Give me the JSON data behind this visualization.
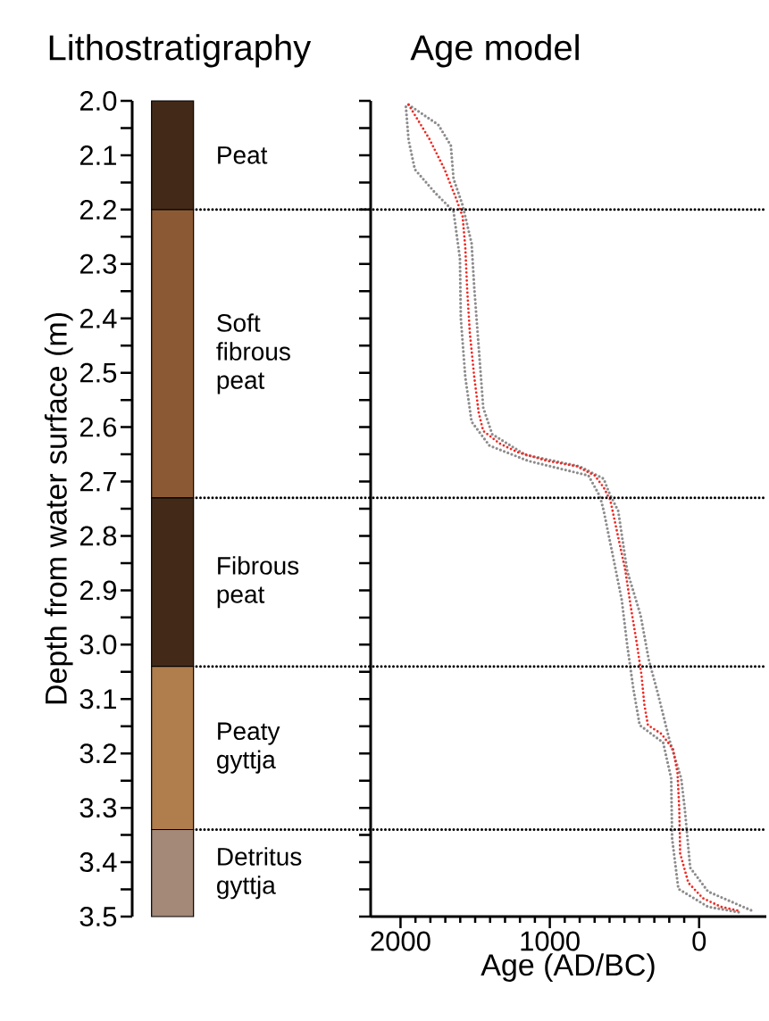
{
  "chart_data": [
    {
      "type": "bar",
      "title": "Lithostratigraphy",
      "ylabel": "Depth from water surface (m)",
      "categories": [
        null
      ],
      "series": [
        {
          "name": "Peat",
          "color": "#432a18",
          "values": [
            0.2
          ],
          "base": [
            2.0
          ]
        },
        {
          "name": "Soft fibrous peat",
          "color": "#8b5a34",
          "values": [
            0.53
          ],
          "base": [
            2.2
          ]
        },
        {
          "name": "Fibrous peat",
          "color": "#432a18",
          "values": [
            0.31
          ],
          "base": [
            2.73
          ]
        },
        {
          "name": "Peaty gyttja",
          "color": "#b07d4c",
          "values": [
            0.3
          ],
          "base": [
            3.04
          ]
        },
        {
          "name": "Detritus gyttja",
          "color": "#a48878",
          "values": [
            0.16
          ],
          "base": [
            3.34
          ]
        }
      ],
      "ylim": [
        3.5,
        2.0
      ],
      "yticks": [
        {
          "value": 2.0,
          "label": "2.0"
        },
        {
          "value": 2.05,
          "label": null
        },
        {
          "value": 2.1,
          "label": "2.1"
        },
        {
          "value": 2.15,
          "label": null
        },
        {
          "value": 2.2,
          "label": "2.2"
        },
        {
          "value": 2.25,
          "label": null
        },
        {
          "value": 2.3,
          "label": "2.3"
        },
        {
          "value": 2.35,
          "label": null
        },
        {
          "value": 2.4,
          "label": "2.4"
        },
        {
          "value": 2.45,
          "label": null
        },
        {
          "value": 2.5,
          "label": "2.5"
        },
        {
          "value": 2.55,
          "label": null
        },
        {
          "value": 2.6,
          "label": "2.6"
        },
        {
          "value": 2.65,
          "label": null
        },
        {
          "value": 2.7,
          "label": "2.7"
        },
        {
          "value": 2.75,
          "label": null
        },
        {
          "value": 2.8,
          "label": "2.8"
        },
        {
          "value": 2.85,
          "label": null
        },
        {
          "value": 2.9,
          "label": "2.9"
        },
        {
          "value": 2.95,
          "label": null
        },
        {
          "value": 3.0,
          "label": "3.0"
        },
        {
          "value": 3.05,
          "label": null
        },
        {
          "value": 3.1,
          "label": "3.1"
        },
        {
          "value": 3.15,
          "label": null
        },
        {
          "value": 3.2,
          "label": "3.2"
        },
        {
          "value": 3.25,
          "label": null
        },
        {
          "value": 3.3,
          "label": "3.3"
        },
        {
          "value": 3.35,
          "label": null
        },
        {
          "value": 3.4,
          "label": "3.4"
        },
        {
          "value": 3.45,
          "label": null
        },
        {
          "value": 3.5,
          "label": "3.5"
        }
      ],
      "tick_labels": "y"
    },
    {
      "type": "line",
      "title": "Age model",
      "xlabel": "Age (AD/BC)",
      "xlim": [
        2200,
        -450
      ],
      "xticks": [
        2000,
        1000,
        0
      ],
      "ylim": [
        3.5,
        2.0
      ],
      "yticks": [
        {
          "value": 2.0,
          "label": null
        },
        {
          "value": 2.05,
          "label": null
        },
        {
          "value": 2.1,
          "label": null
        },
        {
          "value": 2.15,
          "label": null
        },
        {
          "value": 2.2,
          "label": null
        },
        {
          "value": 2.25,
          "label": null
        },
        {
          "value": 2.3,
          "label": null
        },
        {
          "value": 2.35,
          "label": null
        },
        {
          "value": 2.4,
          "label": null
        },
        {
          "value": 2.45,
          "label": null
        },
        {
          "value": 2.5,
          "label": null
        },
        {
          "value": 2.55,
          "label": null
        },
        {
          "value": 2.6,
          "label": null
        },
        {
          "value": 2.65,
          "label": null
        },
        {
          "value": 2.7,
          "label": null
        },
        {
          "value": 2.75,
          "label": null
        },
        {
          "value": 2.8,
          "label": null
        },
        {
          "value": 2.85,
          "label": null
        },
        {
          "value": 2.9,
          "label": null
        },
        {
          "value": 2.95,
          "label": null
        },
        {
          "value": 3.0,
          "label": null
        },
        {
          "value": 3.05,
          "label": null
        },
        {
          "value": 3.1,
          "label": null
        },
        {
          "value": 3.15,
          "label": null
        },
        {
          "value": 3.2,
          "label": null
        },
        {
          "value": 3.25,
          "label": null
        },
        {
          "value": 3.3,
          "label": null
        },
        {
          "value": 3.35,
          "label": null
        },
        {
          "value": 3.4,
          "label": null
        },
        {
          "value": 3.45,
          "label": null
        },
        {
          "value": 3.5,
          "label": null
        }
      ],
      "tick_labels": "x",
      "series": [
        {
          "color": "#8c8c8c",
          "line_style": "dotted",
          "x": [
            1964,
            1946,
            1904,
            1765,
            1645,
            1602,
            1596,
            1566,
            1524,
            1404,
            1145,
            741,
            663,
            639,
            578,
            518,
            482,
            440,
            398,
            241,
            187,
            181,
            139,
            -60,
            -265
          ],
          "values": [
            2.011,
            2.072,
            2.126,
            2.17,
            2.203,
            2.29,
            2.4,
            2.508,
            2.59,
            2.634,
            2.662,
            2.689,
            2.728,
            2.754,
            2.836,
            2.918,
            3.0,
            3.082,
            3.148,
            3.18,
            3.246,
            3.356,
            3.449,
            3.482,
            3.492
          ]
        },
        {
          "color": "#8c8c8c",
          "line_style": "dotted",
          "x": [
            1946,
            1747,
            1663,
            1645,
            1584,
            1524,
            1506,
            1476,
            1446,
            1386,
            1163,
            801,
            639,
            602,
            542,
            482,
            392,
            337,
            277,
            199,
            120,
            96,
            60,
            -60,
            -361
          ],
          "values": [
            2.007,
            2.044,
            2.082,
            2.143,
            2.192,
            2.262,
            2.344,
            2.454,
            2.564,
            2.613,
            2.651,
            2.672,
            2.695,
            2.721,
            2.754,
            2.864,
            2.946,
            3.028,
            3.089,
            3.175,
            3.246,
            3.302,
            3.41,
            3.454,
            3.49
          ]
        },
        {
          "color": "#ee2a24",
          "line_style": "dotted",
          "x": [
            1946,
            1807,
            1705,
            1627,
            1584,
            1566,
            1554,
            1536,
            1506,
            1476,
            1446,
            1337,
            1217,
            1018,
            819,
            699,
            639,
            608,
            596,
            536,
            494,
            458,
            416,
            386,
            367,
            343,
            253,
            175,
            145,
            133,
            127,
            72,
            -24,
            -145,
            -277
          ],
          "values": [
            2.007,
            2.07,
            2.126,
            2.18,
            2.213,
            2.27,
            2.344,
            2.426,
            2.508,
            2.574,
            2.607,
            2.63,
            2.646,
            2.662,
            2.672,
            2.689,
            2.711,
            2.728,
            2.733,
            2.81,
            2.864,
            2.93,
            3.0,
            3.056,
            3.11,
            3.148,
            3.164,
            3.192,
            3.236,
            3.302,
            3.384,
            3.438,
            3.466,
            3.482,
            3.49
          ]
        }
      ],
      "ref_lines": [
        {
          "axis": "y",
          "value": 2.2,
          "color": "#000000",
          "line_style": "dotted"
        },
        {
          "axis": "y",
          "value": 2.73,
          "color": "#000000",
          "line_style": "dotted"
        },
        {
          "axis": "y",
          "value": 3.04,
          "color": "#000000",
          "line_style": "dotted"
        },
        {
          "axis": "y",
          "value": 3.34,
          "color": "#000000",
          "line_style": "dotted"
        }
      ]
    }
  ]
}
